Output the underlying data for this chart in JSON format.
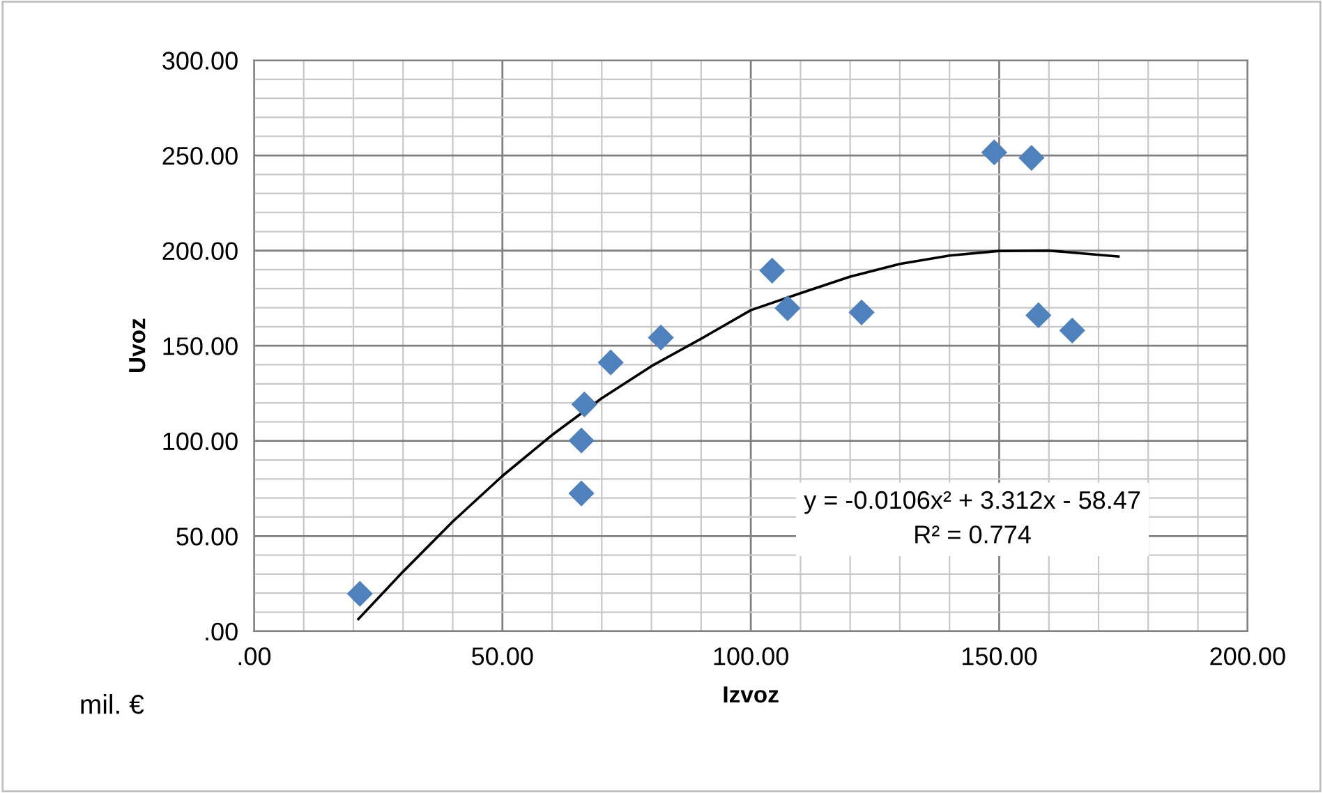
{
  "chart_data": {
    "type": "scatter",
    "xlabel": "Izvoz",
    "ylabel": "Uvoz",
    "xlim": [
      0,
      200
    ],
    "ylim": [
      0,
      300
    ],
    "xticks": [
      {
        "value": 0,
        "label": ".00"
      },
      {
        "value": 50,
        "label": "50.00"
      },
      {
        "value": 100,
        "label": "100.00"
      },
      {
        "value": 150,
        "label": "150.00"
      },
      {
        "value": 200,
        "label": "200.00"
      }
    ],
    "yticks": [
      {
        "value": 0,
        "label": ".00"
      },
      {
        "value": 50,
        "label": "50.00"
      },
      {
        "value": 100,
        "label": "100.00"
      },
      {
        "value": 150,
        "label": "150.00"
      },
      {
        "value": 200,
        "label": "200.00"
      },
      {
        "value": 250,
        "label": "250.00"
      },
      {
        "value": 300,
        "label": "300.00"
      }
    ],
    "grid": true,
    "marker": "diamond",
    "legend": false,
    "series": [
      {
        "color": "#4f81bd",
        "x": [
          21.3,
          65.9,
          65.9,
          66.5,
          71.8,
          81.9,
          104.3,
          107.4,
          122.3,
          149,
          156.5,
          157.9,
          164.7
        ],
        "values": [
          19.7,
          72.4,
          100.2,
          119.2,
          141.2,
          154.3,
          189.5,
          169.7,
          167.5,
          251.6,
          248.7,
          166,
          158
        ]
      },
      {
        "type": "line",
        "color": "#000000",
        "marker": "none",
        "x": [
          21,
          30,
          40,
          50,
          60,
          70,
          80,
          90,
          100,
          110,
          120,
          130,
          140,
          150,
          160,
          174
        ],
        "values": [
          6.4,
          31.3,
          57.6,
          81.6,
          103.1,
          122.4,
          139.3,
          153.7,
          168.7,
          177.6,
          186.3,
          193,
          197.4,
          199.8,
          200,
          196.9
        ]
      }
    ],
    "annotations": [
      "y = -0.0106x² + 3.312x - 58.47\nR² = 0.774",
      "mil. €"
    ]
  }
}
